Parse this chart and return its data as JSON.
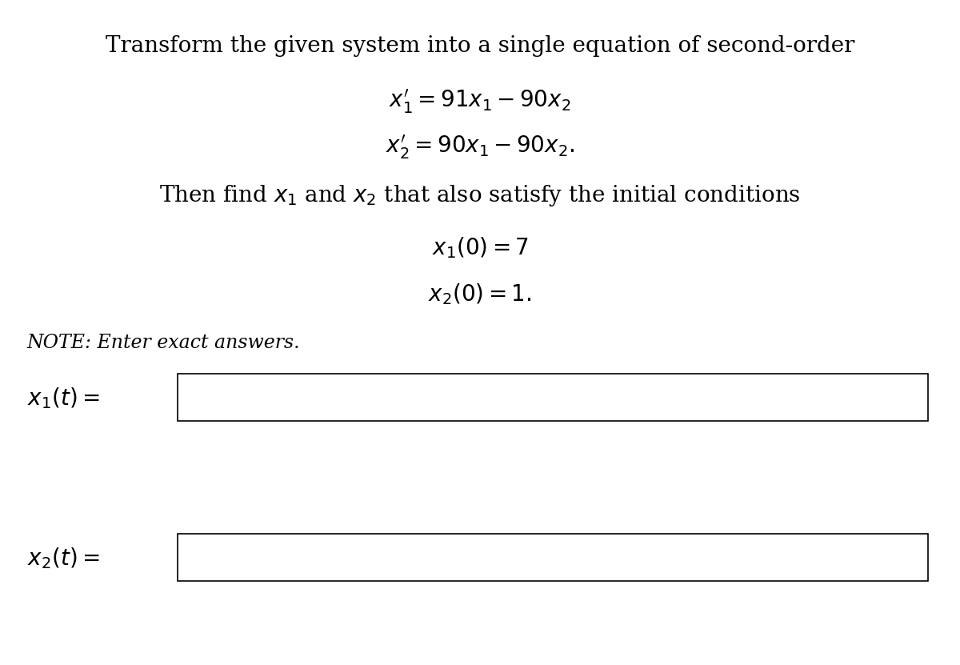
{
  "background_color": "#ffffff",
  "title_text": "Transform the given system into a single equation of second-order",
  "eq1": "$x_1' = 91x_1 - 90x_2$",
  "eq2": "$x_2' = 90x_1 - 90x_2.$",
  "then_text": "Then find $x_1$ and $x_2$ that also satisfy the initial conditions",
  "ic1": "$x_1(0) = 7$",
  "ic2": "$x_2(0) = 1.$",
  "note_text": "NOTE: Enter exact answers.",
  "label1": "$x_1(t) = $",
  "label2": "$x_2(t) = $",
  "title_fontsize": 20,
  "body_fontsize": 20,
  "eq_fontsize": 20,
  "note_fontsize": 17,
  "label_fontsize": 20
}
